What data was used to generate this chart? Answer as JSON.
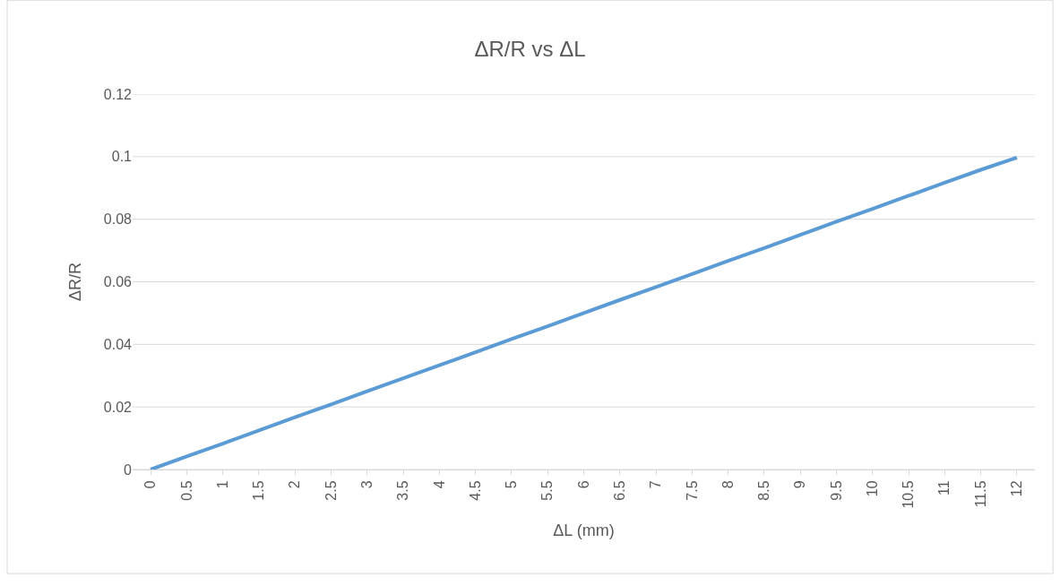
{
  "chart_data": {
    "type": "line",
    "title": "ΔR/R vs ΔL",
    "xlabel": "ΔL (mm)",
    "ylabel": "ΔR/R",
    "categories": [
      "0",
      "0.5",
      "1",
      "1.5",
      "2",
      "2.5",
      "3",
      "3.5",
      "4",
      "4.5",
      "5",
      "5.5",
      "6",
      "6.5",
      "7",
      "7.5",
      "8",
      "8.5",
      "9",
      "9.5",
      "10",
      "10.5",
      "11",
      "11.5",
      "12"
    ],
    "values": [
      0,
      0.0042,
      0.0083,
      0.0125,
      0.0167,
      0.0208,
      0.025,
      0.0292,
      0.0333,
      0.0375,
      0.0417,
      0.0458,
      0.05,
      0.0542,
      0.0583,
      0.0625,
      0.0667,
      0.0708,
      0.075,
      0.0792,
      0.0833,
      0.0875,
      0.0917,
      0.0958,
      0.0997
    ],
    "color": "#5b9bd5",
    "ylim": [
      0,
      0.12
    ],
    "yticks": [
      0,
      0.02,
      0.04,
      0.06,
      0.08,
      0.1,
      0.12
    ],
    "grid": "y",
    "marker": "none",
    "line_style": "solid"
  }
}
